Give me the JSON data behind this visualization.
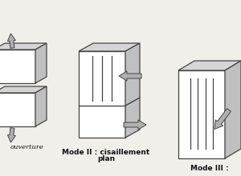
{
  "background_color": "#f0efea",
  "line_color": "#444444",
  "arrow_fill": "#b0b0b0",
  "arrow_edge": "#444444",
  "text_color": "#111111",
  "labels": {
    "mode1": "ouverture",
    "mode2_line1": "Mode II : cisaillement",
    "mode2_line2": "plan",
    "mode3_line1": "Mode III :"
  },
  "figsize": [
    3.0,
    2.2
  ],
  "dpi": 100
}
